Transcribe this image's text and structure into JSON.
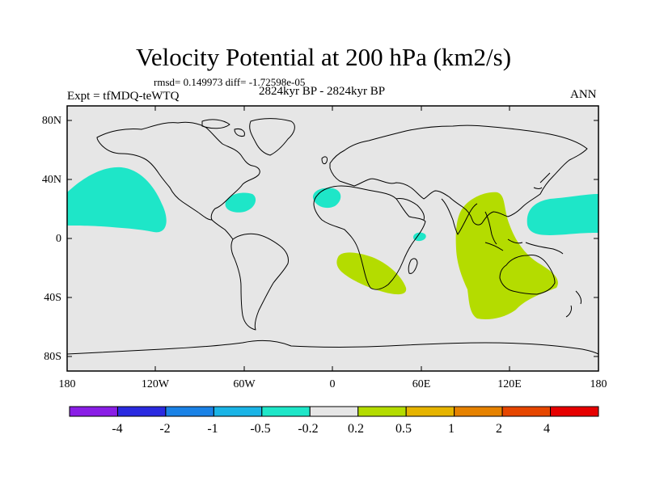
{
  "title": "Velocity Potential at 200 hPa (km2/s)",
  "stats": "rmsd= 0.149973 diff= -1.72598e-05",
  "experiment": "Expt = tfMDQ-teWTQ",
  "period": "2824kyr BP - 2824kyr BP",
  "season": "ANN",
  "map": {
    "projection": "cylindrical-equidistant",
    "lon_range": [
      -180,
      180
    ],
    "lat_range": [
      -90,
      90
    ],
    "background": "#e6e6e6",
    "coastline_color": "#000000"
  },
  "lat_labels": [
    "80N",
    "40N",
    "0",
    "40S",
    "80S"
  ],
  "lon_labels": [
    "180",
    "120W",
    "60W",
    "0",
    "60E",
    "120E",
    "180"
  ],
  "colorbar": {
    "colors": [
      "#8a1ee6",
      "#2a2ae0",
      "#1a82e6",
      "#1ab4e6",
      "#1ee6c8",
      "#e6e6e6",
      "#b4dc00",
      "#e6b400",
      "#e68200",
      "#e64600",
      "#e60000"
    ],
    "labels": [
      "-4",
      "-2",
      "-1",
      "-0.5",
      "-0.2",
      "0.2",
      "0.5",
      "1",
      "2",
      "4"
    ]
  },
  "anomaly_regions": [
    {
      "name": "north-pacific-negative",
      "sign": "negative",
      "color": "#1ee6c8"
    },
    {
      "name": "caribbean-negative",
      "sign": "negative",
      "color": "#1ee6c8"
    },
    {
      "name": "north-africa-negative",
      "sign": "negative",
      "color": "#1ee6c8"
    },
    {
      "name": "indian-ocean-small-negative",
      "sign": "negative",
      "color": "#1ee6c8"
    },
    {
      "name": "west-pacific-negative",
      "sign": "negative",
      "color": "#1ee6c8"
    },
    {
      "name": "south-africa-positive",
      "sign": "positive",
      "color": "#b4dc00"
    },
    {
      "name": "indian-ocean-positive",
      "sign": "positive",
      "color": "#b4dc00"
    }
  ]
}
